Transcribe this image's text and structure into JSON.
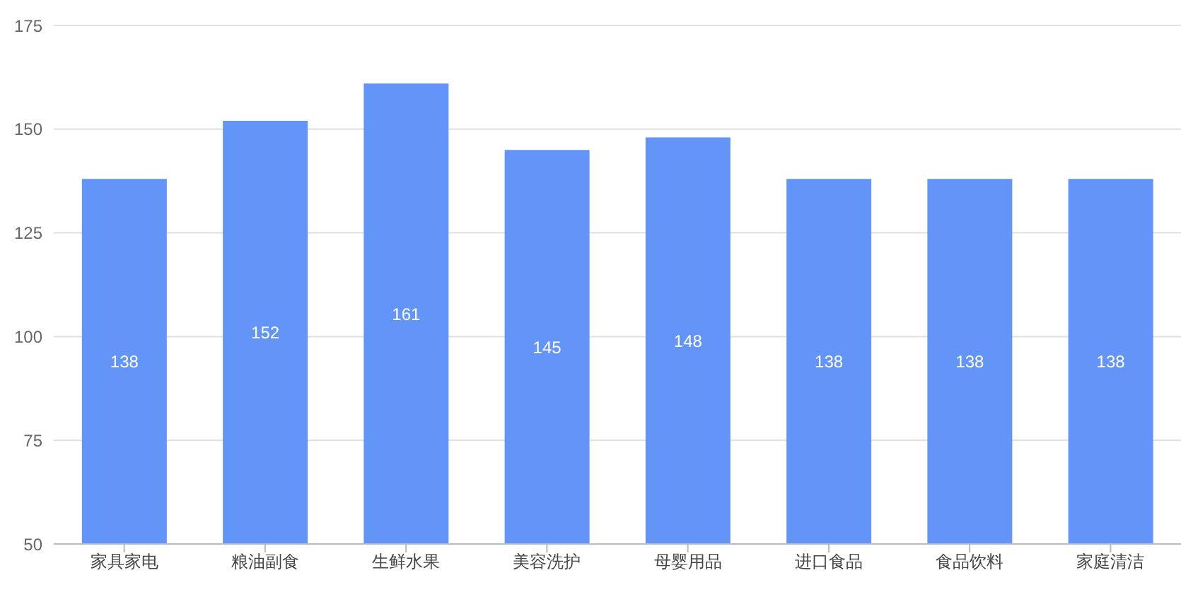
{
  "chart_data": {
    "type": "bar",
    "categories": [
      "家具家电",
      "粮油副食",
      "生鲜水果",
      "美容洗护",
      "母婴用品",
      "进口食品",
      "食品饮料",
      "家庭清洁"
    ],
    "values": [
      138,
      152,
      161,
      145,
      148,
      138,
      138,
      138
    ],
    "color": "#6395f9",
    "ylim": [
      50,
      175
    ],
    "yticks": [
      50,
      75,
      100,
      125,
      150,
      175
    ],
    "grid": "y",
    "data_labels": true
  }
}
